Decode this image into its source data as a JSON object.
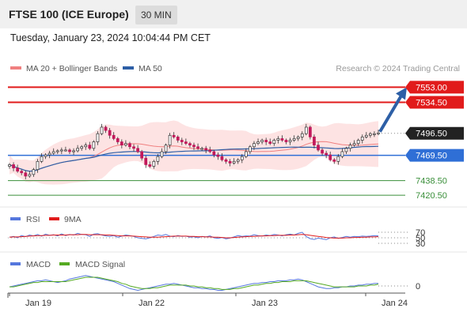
{
  "header": {
    "title": "FTSE 100 (ICE Europe)",
    "timeframe": "30 MIN"
  },
  "datetime": "Tuesday, January 23, 2024 10:04:44 PM CET",
  "source": "Research © 2024 Trading Central",
  "colors": {
    "resistance": "#e11b1b",
    "support": "#2f6fd6",
    "target": "#3a8f3a",
    "current": "#222222",
    "arrow": "#2d5fa6",
    "bull": "#ffffff",
    "bear": "#c2185b",
    "ma20": "#f08080",
    "ma50": "#2d5fa6",
    "rsi": "#5577dd",
    "rsi9": "#e11b1b",
    "macd": "#5577dd",
    "macd_signal": "#55aa22",
    "band_fill": "#fde0e0"
  },
  "chart_data": [
    {
      "type": "candlestick",
      "title": "FTSE 100 (ICE Europe)",
      "x_labels": [
        "Jan 19",
        "Jan 22",
        "Jan 23",
        "Jan 24"
      ],
      "legend": [
        {
          "name": "MA 20 + Bollinger Bands",
          "color": "#f08080"
        },
        {
          "name": "MA 50",
          "color": "#2d5fa6"
        }
      ],
      "ylim": [
        7410,
        7565
      ],
      "levels": [
        {
          "label": "7553.00",
          "value": 7553.0,
          "kind": "resistance"
        },
        {
          "label": "7534.50",
          "value": 7534.5,
          "kind": "resistance"
        },
        {
          "label": "7496.50",
          "value": 7496.5,
          "kind": "current"
        },
        {
          "label": "7469.50",
          "value": 7469.5,
          "kind": "support"
        },
        {
          "label": "7438.50",
          "value": 7438.5,
          "kind": "target"
        },
        {
          "label": "7420.50",
          "value": 7420.5,
          "kind": "target"
        }
      ],
      "arrow": {
        "from": 7496.5,
        "to": 7553.0
      },
      "close": [
        7458,
        7454,
        7450,
        7448,
        7444,
        7446,
        7452,
        7462,
        7468,
        7470,
        7472,
        7474,
        7475,
        7476,
        7476,
        7474,
        7475,
        7478,
        7480,
        7482,
        7478,
        7486,
        7496,
        7504,
        7500,
        7494,
        7490,
        7486,
        7482,
        7484,
        7480,
        7478,
        7474,
        7466,
        7458,
        7456,
        7462,
        7468,
        7474,
        7482,
        7494,
        7492,
        7488,
        7486,
        7484,
        7482,
        7480,
        7478,
        7478,
        7476,
        7474,
        7470,
        7468,
        7464,
        7462,
        7460,
        7462,
        7464,
        7468,
        7474,
        7480,
        7484,
        7486,
        7488,
        7486,
        7484,
        7488,
        7490,
        7488,
        7486,
        7488,
        7490,
        7492,
        7496,
        7504,
        7492,
        7482,
        7476,
        7472,
        7470,
        7464,
        7462,
        7468,
        7474,
        7478,
        7482,
        7484,
        7488,
        7492,
        7494,
        7496,
        7496,
        7497
      ]
    },
    {
      "type": "line",
      "title": "RSI",
      "series": [
        {
          "name": "RSI",
          "color": "#5577dd"
        },
        {
          "name": "9MA",
          "color": "#e11b1b"
        }
      ],
      "yticks": [
        "70",
        "50",
        "30"
      ],
      "ylim": [
        0,
        100
      ],
      "rsi": [
        52,
        55,
        50,
        58,
        54,
        60,
        57,
        62,
        56,
        63,
        59,
        61,
        57,
        64,
        58,
        62,
        60,
        66,
        62,
        61,
        55,
        63,
        65,
        60,
        57,
        55,
        58,
        52,
        56,
        60,
        58,
        55,
        50,
        48,
        46,
        50,
        55,
        60,
        58,
        62,
        56,
        54,
        58,
        55,
        56,
        52,
        54,
        50,
        55,
        53,
        57,
        50,
        48,
        51,
        46,
        49,
        53,
        58,
        55,
        57,
        56,
        61,
        58,
        56,
        60,
        58,
        62,
        60,
        57,
        61,
        63,
        60,
        66,
        70,
        55,
        47,
        44,
        49,
        46,
        43,
        50,
        53,
        48,
        51,
        55,
        52,
        55,
        54,
        56,
        55,
        56,
        58,
        57
      ],
      "rsi9": [
        52,
        53,
        53,
        54,
        55,
        56,
        57,
        58,
        58,
        59,
        59,
        60,
        60,
        60,
        60,
        61,
        61,
        61,
        62,
        62,
        61,
        61,
        61,
        61,
        60,
        60,
        59,
        58,
        57,
        57,
        57,
        56,
        55,
        54,
        53,
        52,
        52,
        52,
        53,
        54,
        55,
        56,
        56,
        56,
        56,
        55,
        55,
        54,
        54,
        53,
        53,
        52,
        52,
        51,
        50,
        50,
        51,
        52,
        53,
        54,
        55,
        55,
        56,
        57,
        57,
        58,
        58,
        59,
        59,
        59,
        60,
        60,
        61,
        62,
        61,
        59,
        57,
        55,
        53,
        51,
        50,
        49,
        49,
        49,
        50,
        50,
        51,
        51,
        52,
        52,
        53,
        53,
        54
      ]
    },
    {
      "type": "line",
      "title": "MACD",
      "series": [
        {
          "name": "MACD",
          "color": "#5577dd"
        },
        {
          "name": "MACD Signal",
          "color": "#55aa22"
        }
      ],
      "yticks": [
        "0"
      ],
      "ylim": [
        -10,
        14
      ],
      "macd": [
        -1,
        0,
        1,
        2,
        3,
        4,
        5,
        6,
        6,
        7,
        6,
        5,
        4,
        5,
        6,
        8,
        9,
        10,
        11,
        12,
        11,
        10,
        9,
        8,
        7,
        6,
        5,
        3,
        1,
        -1,
        -3,
        -4,
        -5,
        -4,
        -3,
        -2,
        -1,
        0,
        1,
        2,
        2,
        3,
        2,
        1,
        0,
        -1,
        -2,
        -2,
        -3,
        -3,
        -4,
        -4,
        -5,
        -5,
        -4,
        -3,
        -2,
        -1,
        0,
        1,
        2,
        3,
        3,
        4,
        4,
        5,
        5,
        6,
        6,
        6,
        7,
        7,
        8,
        7,
        5,
        3,
        1,
        -1,
        -2,
        -3,
        -3,
        -2,
        -2,
        -1,
        -1,
        0,
        0,
        1,
        1,
        2,
        2,
        3,
        3
      ],
      "signal": [
        -1,
        -1,
        0,
        1,
        2,
        3,
        4,
        4,
        5,
        5,
        5,
        5,
        5,
        5,
        5,
        6,
        7,
        8,
        9,
        10,
        10,
        10,
        10,
        9,
        8,
        7,
        6,
        5,
        3,
        2,
        0,
        -1,
        -2,
        -3,
        -3,
        -3,
        -2,
        -2,
        -1,
        0,
        1,
        1,
        1,
        1,
        1,
        0,
        0,
        -1,
        -1,
        -2,
        -2,
        -3,
        -3,
        -4,
        -4,
        -4,
        -3,
        -3,
        -2,
        -1,
        0,
        1,
        1,
        2,
        3,
        3,
        4,
        4,
        5,
        5,
        5,
        6,
        6,
        6,
        6,
        5,
        4,
        3,
        2,
        1,
        0,
        -1,
        -1,
        -1,
        -1,
        -1,
        -1,
        0,
        0,
        0,
        1,
        1,
        2
      ]
    }
  ],
  "rsi_legend": [
    {
      "name": "RSI"
    },
    {
      "name": "9MA"
    }
  ],
  "macd_legend": [
    {
      "name": "MACD"
    },
    {
      "name": "MACD Signal"
    }
  ]
}
